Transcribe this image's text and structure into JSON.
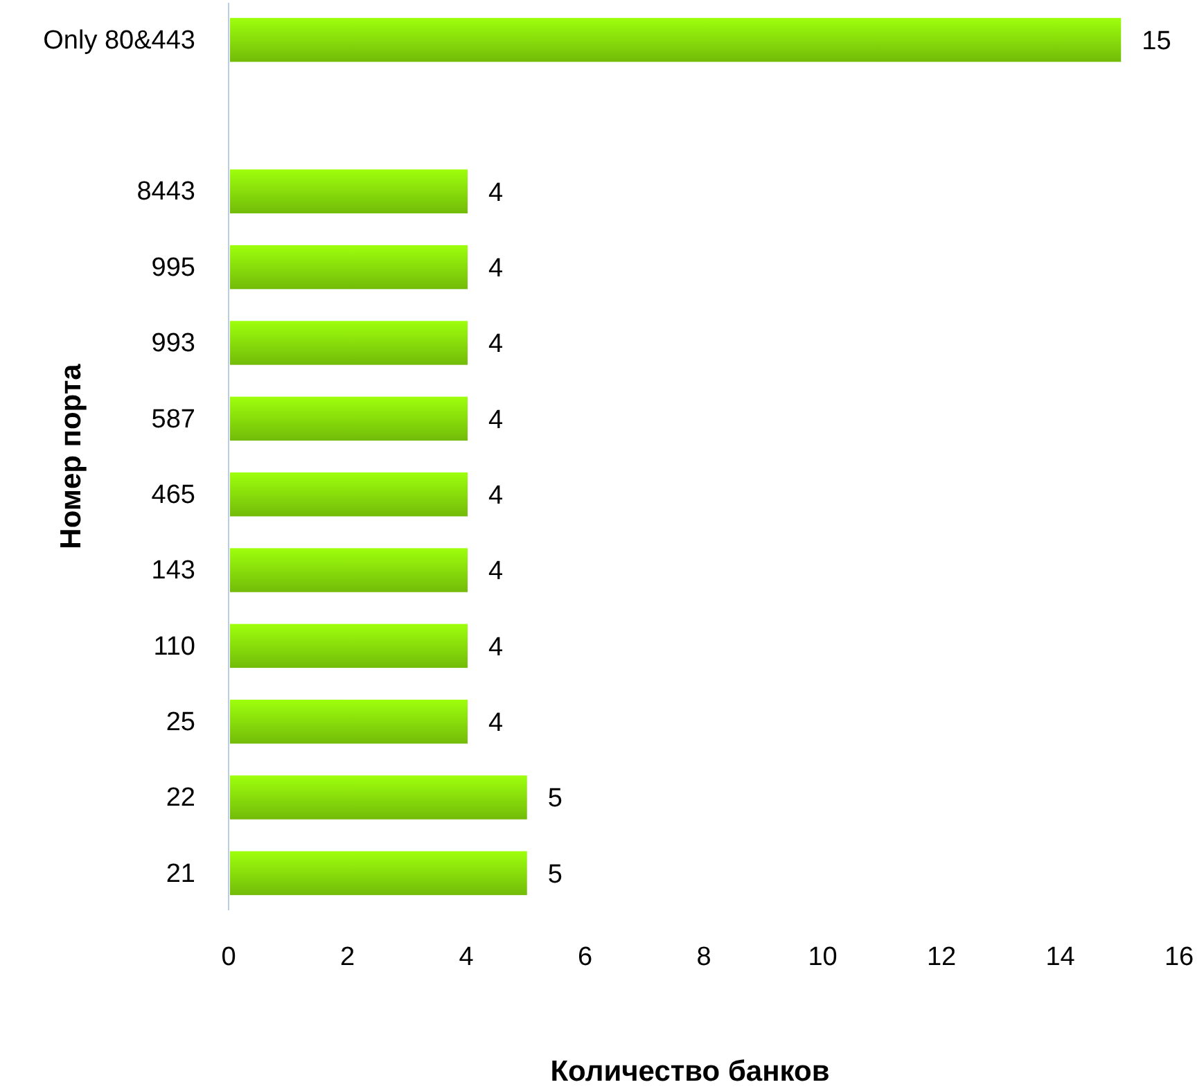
{
  "chart_data": {
    "type": "bar",
    "orientation": "horizontal",
    "xlabel": "Количество банков",
    "ylabel": "Номер порта",
    "categories": [
      "Only 80&443",
      null,
      "8443",
      "995",
      "993",
      "587",
      "465",
      "143",
      "110",
      "25",
      "22",
      "21"
    ],
    "values": [
      15,
      null,
      4,
      4,
      4,
      4,
      4,
      4,
      4,
      4,
      5,
      5
    ],
    "color": "#84d80a",
    "xlim": [
      0,
      16
    ],
    "xticks": [
      0,
      2,
      4,
      6,
      8,
      10,
      12,
      14,
      16
    ],
    "data_labels": true
  }
}
